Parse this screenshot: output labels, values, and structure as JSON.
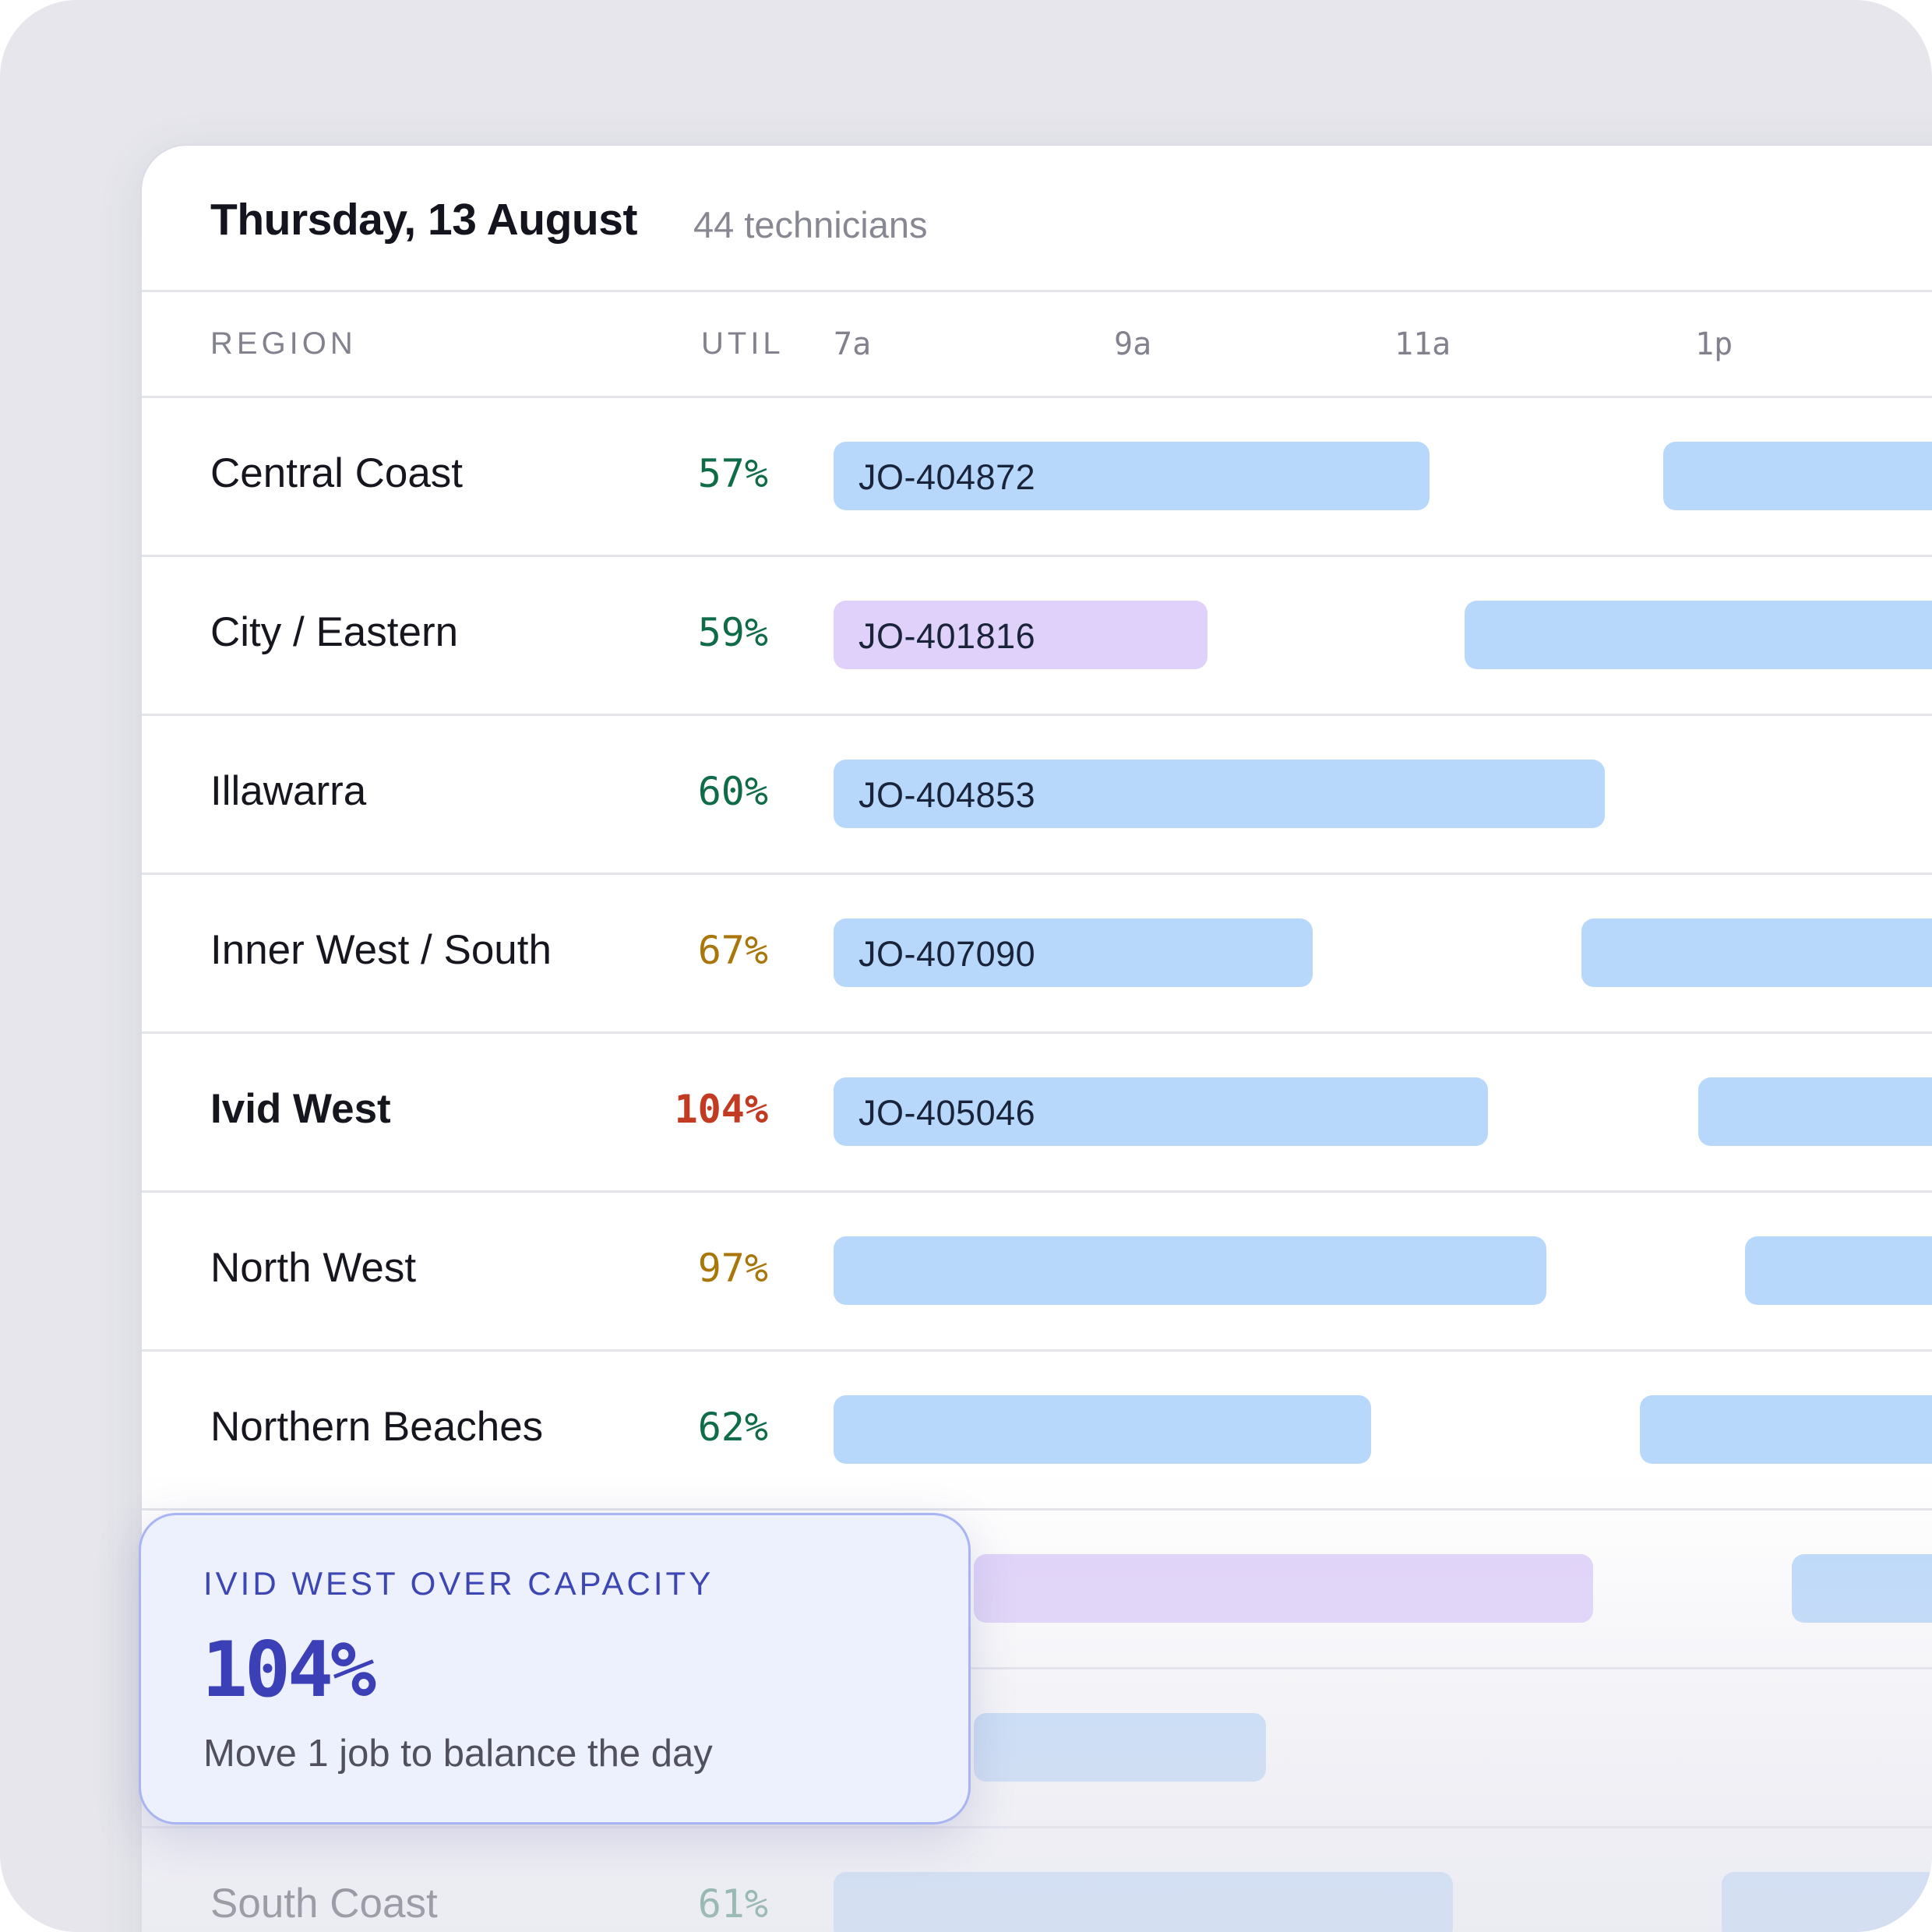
{
  "header": {
    "title": "Thursday, 13 August",
    "subtitle": "44 technicians"
  },
  "columns": {
    "region": "REGION",
    "util": "UTIL",
    "times": [
      "7a",
      "9a",
      "11a",
      "1p"
    ]
  },
  "rows": [
    {
      "name": "Central Coast",
      "util": "57%",
      "bars": [
        {
          "label": "JO-404872",
          "start": "7:00",
          "end": "11:15",
          "kind": "blue"
        },
        {
          "label": "",
          "start": "12:55",
          "end": "14:30+",
          "kind": "blue"
        }
      ]
    },
    {
      "name": "City / Eastern",
      "util": "59%",
      "bars": [
        {
          "label": "JO-401816",
          "start": "7:00",
          "end": "9:40",
          "kind": "purple"
        },
        {
          "label": "",
          "start": "11:30",
          "end": "14:30+",
          "kind": "blue"
        }
      ]
    },
    {
      "name": "Illawarra",
      "util": "60%",
      "bars": [
        {
          "label": "JO-404853",
          "start": "7:00",
          "end": "12:30",
          "kind": "blue"
        }
      ]
    },
    {
      "name": "Inner West / South",
      "util": "67%",
      "bars": [
        {
          "label": "JO-407090",
          "start": "7:00",
          "end": "10:25",
          "kind": "blue"
        },
        {
          "label": "",
          "start": "12:20",
          "end": "14:30+",
          "kind": "blue"
        }
      ]
    },
    {
      "name": "Ivid West",
      "util": "104%",
      "bars": [
        {
          "label": "JO-405046",
          "start": "7:00",
          "end": "11:40",
          "kind": "blue"
        },
        {
          "label": "",
          "start": "13:10",
          "end": "14:30+",
          "kind": "blue"
        }
      ]
    },
    {
      "name": "North West",
      "util": "97%",
      "bars": [
        {
          "label": "",
          "start": "7:00",
          "end": "12:05",
          "kind": "blue"
        },
        {
          "label": "",
          "start": "13:30",
          "end": "14:30+",
          "kind": "blue"
        }
      ]
    },
    {
      "name": "Northern Beaches",
      "util": "62%",
      "bars": [
        {
          "label": "",
          "start": "7:00",
          "end": "10:50",
          "kind": "blue"
        },
        {
          "label": "",
          "start": "12:45",
          "end": "14:30+",
          "kind": "blue"
        }
      ]
    },
    {
      "name": "",
      "util": "",
      "bars": [
        {
          "label": "",
          "start": "8:00",
          "end": "12:25",
          "kind": "purple"
        },
        {
          "label": "",
          "start": "13:50",
          "end": "14:30+",
          "kind": "blue"
        }
      ]
    },
    {
      "name": "",
      "util": "",
      "bars": [
        {
          "label": "",
          "start": "8:00",
          "end": "10:05",
          "kind": "blue"
        }
      ]
    },
    {
      "name": "South Coast",
      "util": "61%",
      "bars": [
        {
          "label": "",
          "start": "7:00",
          "end": "11:25",
          "kind": "blue"
        },
        {
          "label": "",
          "start": "13:20",
          "end": "14:30+",
          "kind": "blue"
        }
      ]
    }
  ],
  "callout": {
    "label": "IVID WEST OVER CAPACITY",
    "value": "104%",
    "description": "Move 1 job to balance the day"
  },
  "colors": {
    "util_ok": "#106b48",
    "util_warn": "#a8760a",
    "util_over": "#c33a22",
    "bar_blue": "#b8d8fb",
    "bar_purple": "#e0d1fb",
    "accent": "#3b40b6"
  }
}
